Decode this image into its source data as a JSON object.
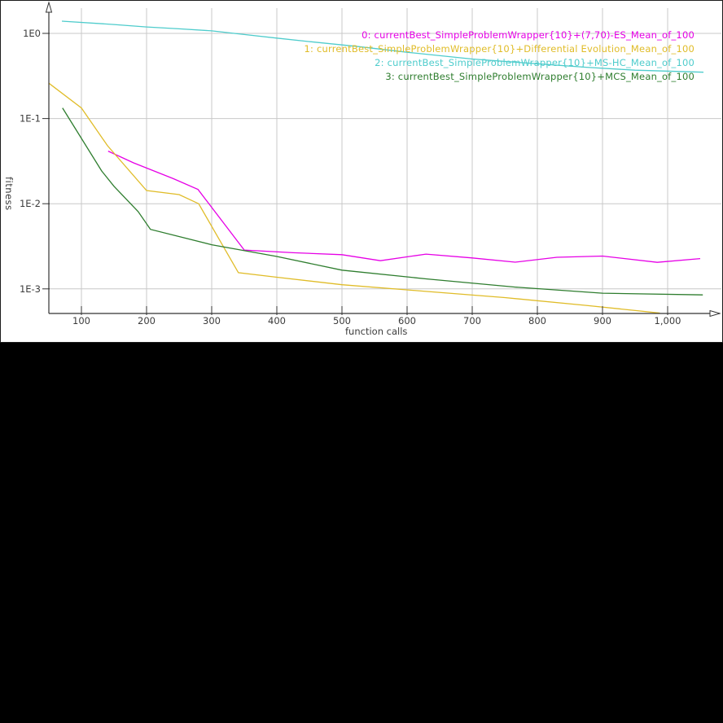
{
  "colors": {
    "plot_background": "#ffffff",
    "page_background": "#000000",
    "grid": "#c8c8c8",
    "axis": "#333333",
    "tick_text": "#3c3c3c",
    "series_es": "#e600e6",
    "series_de": "#e0bc28",
    "series_mshc": "#4ecccc",
    "series_mcs": "#2e7d2e"
  },
  "chart_data": {
    "type": "line",
    "title": "",
    "xlabel": "function calls",
    "ylabel": "fitness",
    "grid": true,
    "legend_position": "top-right",
    "x_axis": {
      "scale": "linear",
      "min": 50,
      "max": 1070,
      "ticks": [
        {
          "value": 100,
          "label": "100"
        },
        {
          "value": 200,
          "label": "200"
        },
        {
          "value": 300,
          "label": "300"
        },
        {
          "value": 400,
          "label": "400"
        },
        {
          "value": 500,
          "label": "500"
        },
        {
          "value": 600,
          "label": "600"
        },
        {
          "value": 700,
          "label": "700"
        },
        {
          "value": 800,
          "label": "800"
        },
        {
          "value": 900,
          "label": "900"
        },
        {
          "value": 1000,
          "label": "1,000"
        }
      ]
    },
    "y_axis": {
      "scale": "log",
      "min": 0.0005,
      "max": 2.0,
      "ticks": [
        {
          "value": 1,
          "label": "1E0"
        },
        {
          "value": 0.1,
          "label": "1E-1"
        },
        {
          "value": 0.01,
          "label": "1E-2"
        },
        {
          "value": 0.001,
          "label": "1E-3"
        }
      ]
    },
    "series": [
      {
        "index": 0,
        "name": "currentBest_SimpleProblemWrapper{10}+(7,70)-ES_Mean_of_100",
        "legend_label": "0: currentBest_SimpleProblemWrapper{10}+(7,70)-ES_Mean_of_100",
        "color": "#e600e6",
        "points": [
          [
            141,
            0.0415
          ],
          [
            180,
            0.0302
          ],
          [
            241,
            0.0197
          ],
          [
            279,
            0.0147
          ],
          [
            350,
            0.00286
          ],
          [
            425,
            0.00266
          ],
          [
            500,
            0.00252
          ],
          [
            559,
            0.00214
          ],
          [
            629,
            0.00256
          ],
          [
            700,
            0.00231
          ],
          [
            766,
            0.00206
          ],
          [
            830,
            0.00235
          ],
          [
            900,
            0.00243
          ],
          [
            984,
            0.00205
          ],
          [
            1050,
            0.00227
          ]
        ]
      },
      {
        "index": 1,
        "name": "currentBest_SimpleProblemWrapper{10}+Differential Evolution_Mean_of_100",
        "legend_label": "1: currentBest_SimpleProblemWrapper{10}+Differential Evolution_Mean_of_100",
        "color": "#e0bc28",
        "points": [
          [
            50,
            0.26
          ],
          [
            100,
            0.133
          ],
          [
            140,
            0.048
          ],
          [
            200,
            0.0143
          ],
          [
            250,
            0.0128
          ],
          [
            280,
            0.01
          ],
          [
            341,
            0.00155
          ],
          [
            400,
            0.00137
          ],
          [
            500,
            0.00112
          ],
          [
            625,
            0.00094
          ],
          [
            750,
            0.00079
          ],
          [
            875,
            0.00064
          ],
          [
            988,
            0.00052
          ]
        ]
      },
      {
        "index": 2,
        "name": "currentBest_SimpleProblemWrapper{10}+MS-HC_Mean_of_100",
        "legend_label": "2: currentBest_SimpleProblemWrapper{10}+MS-HC_Mean_of_100",
        "color": "#4ecccc",
        "points": [
          [
            70,
            1.39
          ],
          [
            150,
            1.27
          ],
          [
            200,
            1.19
          ],
          [
            250,
            1.13
          ],
          [
            300,
            1.07
          ],
          [
            350,
            0.97
          ],
          [
            400,
            0.88
          ],
          [
            450,
            0.8
          ],
          [
            525,
            0.7
          ],
          [
            600,
            0.6
          ],
          [
            700,
            0.5
          ],
          [
            800,
            0.44
          ],
          [
            875,
            0.4
          ],
          [
            950,
            0.37
          ],
          [
            1055,
            0.35
          ]
        ]
      },
      {
        "index": 3,
        "name": "currentBest_SimpleProblemWrapper{10}+MCS_Mean_of_100",
        "legend_label": "3: currentBest_SimpleProblemWrapper{10}+MCS_Mean_of_100",
        "color": "#2e7d2e",
        "points": [
          [
            71,
            0.133
          ],
          [
            131,
            0.0243
          ],
          [
            150,
            0.016
          ],
          [
            187,
            0.0081
          ],
          [
            206,
            0.005
          ],
          [
            300,
            0.0033
          ],
          [
            400,
            0.0024
          ],
          [
            500,
            0.00166
          ],
          [
            629,
            0.00131
          ],
          [
            766,
            0.00105
          ],
          [
            900,
            0.00089
          ],
          [
            1054,
            0.00085
          ]
        ]
      }
    ]
  }
}
